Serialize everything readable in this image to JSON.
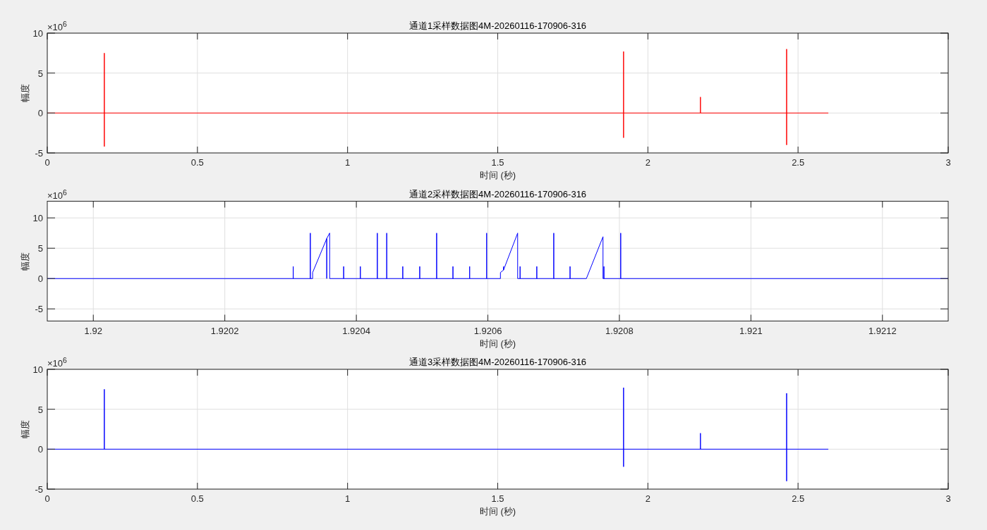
{
  "chart_data": [
    {
      "type": "line",
      "title": "通道1采样数据图4M-20260116-170906-316",
      "xlabel": "时间 (秒)",
      "ylabel": "幅度",
      "annotations": [
        "×10$^{6}$"
      ],
      "grid": true,
      "xlim": [
        0,
        3
      ],
      "xticks": [
        0,
        0.5,
        1,
        1.5,
        2,
        2.5,
        3
      ],
      "ylim": [
        -5,
        10
      ],
      "yticks": [
        -5,
        0,
        5,
        10
      ],
      "series": [
        {
          "color": "#ff0000",
          "x": [
            0,
            0.19,
            0.19,
            0.19,
            0.19,
            1.919,
            1.919,
            1.919,
            1.919,
            2.175,
            2.175,
            2.175,
            2.462,
            2.462,
            2.462,
            2.462,
            2.6
          ],
          "values": [
            0,
            0,
            7.5,
            -4.2,
            0,
            0,
            7.7,
            -3.1,
            0,
            0,
            2.0,
            0,
            0,
            8.0,
            -4.0,
            0,
            0
          ]
        }
      ]
    },
    {
      "type": "line",
      "title": "通道2采样数据图4M-20260116-170906-316",
      "xlabel": "时间 (秒)",
      "ylabel": "幅度",
      "annotations": [
        "×10$^{6}$"
      ],
      "grid": true,
      "xlim": [
        1.91993,
        1.9213
      ],
      "xticks": [
        1.92,
        1.9202,
        1.9204,
        1.9206,
        1.9208,
        1.921,
        1.9212
      ],
      "ylim": [
        -7,
        12.75
      ],
      "yticks": [
        -5,
        0,
        5,
        10
      ],
      "series": [
        {
          "color": "#0000ff",
          "x": [
            1.91993,
            1.920304,
            1.920304,
            1.920304,
            1.92033,
            1.92033,
            1.92033,
            1.9203335,
            1.9203335,
            1.920355,
            1.920355,
            1.920355,
            1.9203594,
            1.9203594,
            1.9203807,
            1.9203807,
            1.9203807,
            1.9204061,
            1.9204061,
            1.9204061,
            1.9204319,
            1.9204319,
            1.9204319,
            1.9204462,
            1.9204462,
            1.9204462,
            1.9204706,
            1.9204706,
            1.9204706,
            1.9204964,
            1.9204964,
            1.9204964,
            1.9205221,
            1.9205221,
            1.9205221,
            1.9205469,
            1.9205469,
            1.9205469,
            1.9205723,
            1.9205723,
            1.9205723,
            1.9205981,
            1.9205981,
            1.9205981,
            1.9206191,
            1.9206191,
            1.9206238,
            1.9206238,
            1.9206238,
            1.9206453,
            1.9206453,
            1.920649,
            1.920649,
            1.920649,
            1.9206744,
            1.9206744,
            1.9206744,
            1.9207002,
            1.9207002,
            1.9207002,
            1.920725,
            1.920725,
            1.920725,
            1.9207498,
            1.9207751,
            1.9207751,
            1.9207765,
            1.9207765,
            1.9207765,
            1.920802,
            1.920802,
            1.920802,
            1.9213
          ],
          "values": [
            0,
            0,
            2,
            0,
            0,
            7.5,
            0,
            0,
            1,
            6.6,
            0,
            6.6,
            7.5,
            0,
            0,
            2,
            0,
            0,
            2,
            0,
            0,
            7.5,
            0,
            0,
            7.5,
            0,
            0,
            2,
            0,
            0,
            2,
            0,
            0,
            7.5,
            0,
            0,
            2,
            0,
            0,
            2,
            0,
            0,
            7.5,
            0,
            0,
            1,
            1.4,
            2,
            1.4,
            7.5,
            0,
            0,
            2,
            0,
            0,
            2,
            0,
            0,
            7.5,
            0,
            0,
            2,
            0,
            0,
            6.9,
            0,
            0,
            2,
            0,
            0,
            7.5,
            0,
            0
          ]
        }
      ]
    },
    {
      "type": "line",
      "title": "通道3采样数据图4M-20260116-170906-316",
      "xlabel": "时间 (秒)",
      "ylabel": "幅度",
      "annotations": [
        "×10$^{6}$"
      ],
      "grid": true,
      "xlim": [
        0,
        3
      ],
      "xticks": [
        0,
        0.5,
        1,
        1.5,
        2,
        2.5,
        3
      ],
      "ylim": [
        -5,
        10
      ],
      "yticks": [
        -5,
        0,
        5,
        10
      ],
      "series": [
        {
          "color": "#0000ff",
          "x": [
            0,
            0.19,
            0.19,
            0.19,
            1.919,
            1.919,
            1.919,
            1.919,
            2.175,
            2.175,
            2.175,
            2.462,
            2.462,
            2.462,
            2.462,
            2.6
          ],
          "values": [
            0,
            0,
            7.5,
            0,
            0,
            7.7,
            -2.2,
            0,
            0,
            2.0,
            0,
            0,
            7.0,
            -4.0,
            0,
            0
          ]
        }
      ]
    }
  ]
}
